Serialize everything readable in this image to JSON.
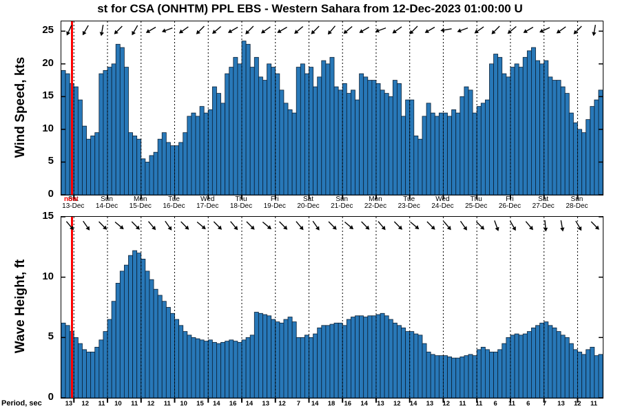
{
  "title": "st for CSA (ONHTM) PPL EBS  - Western Sahara from 12-Dec-2023 01:00:00 U",
  "now_label": "now",
  "colors": {
    "bar_fill": "#2878B8",
    "bar_edge": "#0b1f33",
    "now_line": "#FF0000",
    "grid": "#000000"
  },
  "period_row": {
    "label": "Period, sec",
    "values": [
      13,
      12,
      11,
      10,
      11,
      12,
      11,
      10,
      15,
      14,
      16,
      14,
      13,
      12,
      7,
      14,
      18,
      16,
      14,
      13,
      12,
      14,
      13,
      12,
      11,
      11,
      6,
      11,
      6,
      7,
      13,
      12,
      11
    ]
  },
  "days": [
    {
      "dow": "Sat",
      "date": "13-Dec"
    },
    {
      "dow": "Sun",
      "date": "14-Dec"
    },
    {
      "dow": "Mon",
      "date": "15-Dec"
    },
    {
      "dow": "Tue",
      "date": "16-Dec"
    },
    {
      "dow": "Wed",
      "date": "17-Dec"
    },
    {
      "dow": "Thu",
      "date": "18-Dec"
    },
    {
      "dow": "Fri",
      "date": "19-Dec"
    },
    {
      "dow": "Sat",
      "date": "20-Dec"
    },
    {
      "dow": "Sun",
      "date": "21-Dec"
    },
    {
      "dow": "Mon",
      "date": "22-Dec"
    },
    {
      "dow": "Tue",
      "date": "23-Dec"
    },
    {
      "dow": "Wed",
      "date": "24-Dec"
    },
    {
      "dow": "Thu",
      "date": "25-Dec"
    },
    {
      "dow": "Fri",
      "date": "26-Dec"
    },
    {
      "dow": "Sat",
      "date": "27-Dec"
    },
    {
      "dow": "Sun",
      "date": "28-Dec"
    }
  ],
  "chart_data": [
    {
      "type": "bar",
      "name": "wind",
      "ylabel": "Wind Speed, kts",
      "ylim": [
        0,
        26.5
      ],
      "yticks": [
        0,
        5,
        10,
        15,
        20,
        25
      ],
      "day_start_index": 3,
      "bars_per_day": 8,
      "now_index": 2.55,
      "values": [
        19,
        18.5,
        17,
        16.5,
        14.5,
        10.5,
        8.5,
        9,
        9.5,
        18.5,
        19,
        19.5,
        20,
        23,
        22.5,
        19.5,
        9.5,
        9,
        8.5,
        5.5,
        5,
        6,
        6.5,
        8.5,
        9.5,
        8,
        7.5,
        7.5,
        8,
        9.5,
        12,
        12.5,
        12,
        13.5,
        12.5,
        13,
        16.5,
        15.5,
        14,
        18.5,
        19.5,
        21,
        20,
        23.5,
        23,
        19.5,
        21,
        18,
        17.5,
        20,
        19.5,
        18.5,
        16,
        14,
        13,
        12.5,
        19.5,
        20,
        18.5,
        19.5,
        16.5,
        18,
        20.5,
        20,
        21,
        16.5,
        16,
        17,
        15.5,
        16,
        14.5,
        18.5,
        18,
        17.5,
        17.5,
        17,
        16,
        15.5,
        15,
        17.5,
        17,
        12,
        14.5,
        14.5,
        9,
        8.5,
        12,
        14,
        12.5,
        12,
        12.5,
        12.5,
        12,
        13,
        12.5,
        15,
        16.5,
        16,
        12.5,
        13.5,
        14,
        14.5,
        20,
        21.5,
        21,
        18.5,
        18,
        19.5,
        20,
        19.5,
        21,
        22,
        22.5,
        20.5,
        20,
        20.5,
        18,
        17.5,
        17.5,
        16.5,
        15.5,
        12.5,
        11,
        10,
        9.5,
        11.5,
        13.5,
        14.5,
        16
      ],
      "arrow_angles": [
        115,
        120,
        100,
        135,
        120,
        150,
        160,
        145,
        135,
        140,
        150,
        135,
        145,
        150,
        140,
        135,
        130,
        140,
        150,
        160,
        145,
        135,
        150,
        170,
        160,
        145,
        135,
        140,
        150,
        155,
        145,
        135,
        100
      ]
    },
    {
      "type": "bar",
      "name": "wave",
      "ylabel": "Wave Height, ft",
      "ylim": [
        0,
        15
      ],
      "yticks": [
        0,
        5,
        10,
        15
      ],
      "day_start_index": 3,
      "bars_per_day": 8,
      "now_index": 2.55,
      "values": [
        6.2,
        6,
        5.5,
        5,
        4.5,
        4,
        3.8,
        3.8,
        4.2,
        4.8,
        5.5,
        6.5,
        8,
        9.5,
        10.5,
        11,
        11.8,
        12.2,
        12,
        11.5,
        10.5,
        9.8,
        9,
        8.5,
        8,
        7.5,
        7,
        6.5,
        6,
        5.5,
        5.2,
        5,
        4.9,
        4.8,
        4.7,
        4.8,
        4.6,
        4.5,
        4.6,
        4.7,
        4.8,
        4.7,
        4.6,
        4.8,
        5,
        5.2,
        7.1,
        7,
        6.9,
        6.8,
        6.5,
        6.3,
        6.2,
        6.5,
        6.7,
        6.3,
        5,
        5,
        5.2,
        5,
        5.3,
        5.8,
        6,
        6,
        6.1,
        6.2,
        6.2,
        6,
        6.5,
        6.7,
        6.8,
        6.8,
        6.7,
        6.8,
        6.8,
        6.9,
        7,
        6.8,
        6.5,
        6.2,
        6,
        5.8,
        5.5,
        5.5,
        5.3,
        5.2,
        4.5,
        3.8,
        3.6,
        3.5,
        3.5,
        3.5,
        3.4,
        3.3,
        3.3,
        3.4,
        3.5,
        3.6,
        3.5,
        4,
        4.2,
        4,
        3.8,
        3.8,
        4,
        4.5,
        5,
        5.2,
        5.3,
        5.2,
        5.3,
        5.5,
        5.8,
        6,
        6.2,
        6.3,
        6,
        5.8,
        5.5,
        5.2,
        5,
        4.5,
        4,
        3.8,
        3.6,
        4,
        4.2,
        3.5,
        3.6
      ],
      "arrow_angles": [
        50,
        55,
        45,
        40,
        45,
        50,
        55,
        45,
        40,
        45,
        50,
        45,
        40,
        45,
        50,
        55,
        45,
        40,
        45,
        50,
        45,
        40,
        45,
        50,
        55,
        45,
        70,
        60,
        50,
        85,
        80,
        60,
        45
      ]
    }
  ]
}
